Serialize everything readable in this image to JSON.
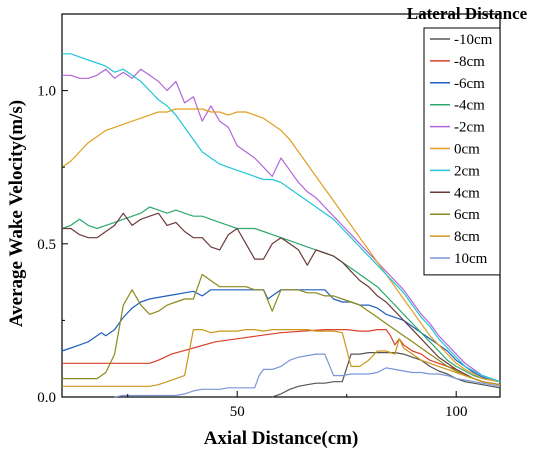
{
  "chart_data": {
    "type": "line",
    "xlabel": "Axial Distance(cm)",
    "ylabel": "Average Wake Velocity(m/s)",
    "xlim": [
      10,
      110
    ],
    "ylim": [
      0,
      1.25
    ],
    "x_ticks": [
      50,
      100
    ],
    "x_tick_labels": [
      "50",
      "100"
    ],
    "y_ticks": [
      0,
      0.5,
      1.0
    ],
    "y_tick_labels": [
      "0.0",
      "0.5",
      "1.0"
    ],
    "legend": {
      "title": "Lateral Distance",
      "placement": "top-right"
    },
    "series": [
      {
        "name": "-10cm",
        "color": "#555555",
        "x": [
          58,
          60,
          62,
          64,
          66,
          68,
          70,
          72,
          74,
          76,
          78,
          80,
          82,
          84,
          86,
          88,
          90,
          92,
          94,
          96,
          98,
          100,
          102,
          104,
          106,
          108,
          110
        ],
        "y": [
          0.0,
          0.01,
          0.025,
          0.035,
          0.04,
          0.045,
          0.045,
          0.05,
          0.05,
          0.14,
          0.14,
          0.145,
          0.145,
          0.145,
          0.145,
          0.14,
          0.13,
          0.12,
          0.1,
          0.085,
          0.075,
          0.06,
          0.05,
          0.045,
          0.04,
          0.035,
          0.03
        ]
      },
      {
        "name": "-8cm",
        "color": "#d9412b",
        "x": [
          10,
          12,
          15,
          20,
          25,
          30,
          32,
          35,
          40,
          45,
          50,
          55,
          60,
          65,
          70,
          75,
          78,
          80,
          82,
          84,
          85,
          86,
          87,
          88,
          90,
          92,
          94,
          96,
          98,
          100,
          102,
          104,
          106,
          108,
          110
        ],
        "y": [
          0.11,
          0.11,
          0.11,
          0.11,
          0.11,
          0.11,
          0.12,
          0.14,
          0.16,
          0.18,
          0.19,
          0.2,
          0.21,
          0.215,
          0.22,
          0.22,
          0.215,
          0.215,
          0.22,
          0.22,
          0.2,
          0.17,
          0.19,
          0.17,
          0.15,
          0.14,
          0.12,
          0.11,
          0.1,
          0.09,
          0.075,
          0.06,
          0.05,
          0.045,
          0.04
        ]
      },
      {
        "name": "-6cm",
        "color": "#1f5fbf",
        "x": [
          10,
          12,
          14,
          16,
          18,
          19,
          20,
          22,
          24,
          26,
          28,
          30,
          32,
          34,
          36,
          38,
          40,
          42,
          44,
          46,
          48,
          50,
          52,
          54,
          56,
          57,
          58,
          60,
          62,
          64,
          66,
          68,
          70,
          72,
          74,
          76,
          78,
          80,
          82,
          84,
          86,
          88,
          90,
          92,
          94,
          96,
          98,
          100,
          102,
          104,
          106,
          108,
          110
        ],
        "y": [
          0.15,
          0.16,
          0.17,
          0.18,
          0.2,
          0.21,
          0.2,
          0.22,
          0.26,
          0.29,
          0.31,
          0.32,
          0.325,
          0.33,
          0.335,
          0.34,
          0.345,
          0.33,
          0.35,
          0.35,
          0.35,
          0.35,
          0.35,
          0.35,
          0.35,
          0.32,
          0.33,
          0.35,
          0.35,
          0.35,
          0.35,
          0.35,
          0.35,
          0.32,
          0.31,
          0.31,
          0.3,
          0.3,
          0.29,
          0.27,
          0.26,
          0.25,
          0.23,
          0.21,
          0.19,
          0.17,
          0.15,
          0.12,
          0.1,
          0.08,
          0.065,
          0.055,
          0.05
        ]
      },
      {
        "name": "-4cm",
        "color": "#2ea86b",
        "x": [
          10,
          12,
          14,
          16,
          18,
          20,
          22,
          24,
          26,
          28,
          30,
          32,
          34,
          36,
          38,
          40,
          42,
          44,
          46,
          48,
          50,
          52,
          54,
          56,
          58,
          60,
          62,
          64,
          66,
          68,
          70,
          72,
          74,
          76,
          78,
          80,
          82,
          84,
          86,
          88,
          90,
          92,
          94,
          96,
          98,
          100,
          102,
          104,
          106,
          108,
          110
        ],
        "y": [
          0.55,
          0.56,
          0.58,
          0.56,
          0.55,
          0.56,
          0.57,
          0.58,
          0.59,
          0.6,
          0.62,
          0.61,
          0.6,
          0.61,
          0.6,
          0.59,
          0.59,
          0.58,
          0.57,
          0.56,
          0.55,
          0.55,
          0.55,
          0.54,
          0.53,
          0.52,
          0.51,
          0.5,
          0.49,
          0.48,
          0.47,
          0.46,
          0.44,
          0.42,
          0.4,
          0.38,
          0.36,
          0.33,
          0.3,
          0.27,
          0.24,
          0.21,
          0.18,
          0.15,
          0.12,
          0.1,
          0.085,
          0.07,
          0.06,
          0.055,
          0.05
        ]
      },
      {
        "name": "-2cm",
        "color": "#b266d9",
        "x": [
          10,
          12,
          14,
          16,
          18,
          20,
          22,
          24,
          26,
          28,
          30,
          32,
          34,
          36,
          38,
          40,
          42,
          44,
          46,
          48,
          50,
          52,
          54,
          56,
          58,
          60,
          62,
          64,
          66,
          68,
          70,
          72,
          74,
          76,
          78,
          80,
          82,
          84,
          86,
          88,
          90,
          92,
          94,
          96,
          98,
          100,
          102,
          104,
          106,
          108,
          110
        ],
        "y": [
          1.05,
          1.05,
          1.04,
          1.04,
          1.05,
          1.07,
          1.04,
          1.06,
          1.04,
          1.07,
          1.05,
          1.03,
          1.0,
          1.03,
          0.96,
          0.98,
          0.9,
          0.95,
          0.9,
          0.88,
          0.82,
          0.8,
          0.78,
          0.75,
          0.72,
          0.78,
          0.74,
          0.7,
          0.67,
          0.65,
          0.62,
          0.59,
          0.56,
          0.53,
          0.5,
          0.47,
          0.44,
          0.41,
          0.38,
          0.35,
          0.31,
          0.27,
          0.24,
          0.2,
          0.17,
          0.14,
          0.11,
          0.09,
          0.07,
          0.06,
          0.05
        ]
      },
      {
        "name": "0cm",
        "color": "#e0a020",
        "x": [
          10,
          12,
          14,
          16,
          18,
          20,
          22,
          24,
          26,
          28,
          30,
          32,
          34,
          36,
          38,
          40,
          42,
          44,
          46,
          48,
          50,
          52,
          54,
          56,
          58,
          60,
          62,
          64,
          66,
          68,
          70,
          72,
          74,
          76,
          78,
          80,
          82,
          84,
          86,
          88,
          90,
          92,
          94,
          96,
          98,
          100,
          102,
          104,
          106,
          108,
          110
        ],
        "y": [
          0.75,
          0.77,
          0.8,
          0.83,
          0.85,
          0.87,
          0.88,
          0.89,
          0.9,
          0.91,
          0.92,
          0.93,
          0.93,
          0.94,
          0.94,
          0.94,
          0.94,
          0.93,
          0.93,
          0.92,
          0.93,
          0.93,
          0.92,
          0.91,
          0.89,
          0.87,
          0.84,
          0.8,
          0.76,
          0.72,
          0.68,
          0.64,
          0.6,
          0.56,
          0.52,
          0.48,
          0.44,
          0.4,
          0.36,
          0.32,
          0.28,
          0.24,
          0.2,
          0.17,
          0.14,
          0.11,
          0.09,
          0.075,
          0.06,
          0.055,
          0.05
        ]
      },
      {
        "name": "2cm",
        "color": "#22c6d8",
        "x": [
          10,
          12,
          14,
          16,
          18,
          20,
          22,
          24,
          26,
          28,
          30,
          32,
          34,
          36,
          38,
          40,
          42,
          44,
          46,
          48,
          50,
          52,
          54,
          56,
          58,
          60,
          62,
          64,
          66,
          68,
          70,
          72,
          74,
          76,
          78,
          80,
          82,
          84,
          86,
          88,
          90,
          92,
          94,
          96,
          98,
          100,
          102,
          104,
          106,
          108,
          110
        ],
        "y": [
          1.12,
          1.12,
          1.11,
          1.1,
          1.09,
          1.08,
          1.06,
          1.07,
          1.05,
          1.03,
          1.0,
          0.97,
          0.95,
          0.92,
          0.88,
          0.84,
          0.8,
          0.78,
          0.76,
          0.75,
          0.74,
          0.73,
          0.72,
          0.71,
          0.71,
          0.7,
          0.68,
          0.66,
          0.64,
          0.62,
          0.6,
          0.58,
          0.55,
          0.52,
          0.49,
          0.46,
          0.43,
          0.4,
          0.37,
          0.34,
          0.3,
          0.26,
          0.23,
          0.19,
          0.16,
          0.13,
          0.1,
          0.085,
          0.07,
          0.06,
          0.05
        ]
      },
      {
        "name": "4cm",
        "color": "#6b3a3a",
        "x": [
          10,
          12,
          14,
          16,
          18,
          20,
          22,
          24,
          26,
          28,
          30,
          32,
          34,
          36,
          38,
          40,
          42,
          44,
          46,
          48,
          50,
          52,
          54,
          56,
          58,
          60,
          62,
          64,
          66,
          68,
          70,
          72,
          74,
          76,
          78,
          80,
          82,
          84,
          86,
          88,
          90,
          92,
          94,
          96,
          98,
          100,
          102,
          104,
          106,
          108,
          110
        ],
        "y": [
          0.55,
          0.55,
          0.53,
          0.52,
          0.52,
          0.54,
          0.56,
          0.6,
          0.56,
          0.58,
          0.59,
          0.6,
          0.56,
          0.57,
          0.54,
          0.52,
          0.52,
          0.49,
          0.48,
          0.53,
          0.55,
          0.5,
          0.45,
          0.45,
          0.5,
          0.52,
          0.5,
          0.48,
          0.43,
          0.48,
          0.47,
          0.46,
          0.44,
          0.41,
          0.38,
          0.36,
          0.33,
          0.31,
          0.28,
          0.25,
          0.22,
          0.19,
          0.16,
          0.13,
          0.11,
          0.09,
          0.075,
          0.06,
          0.05,
          0.045,
          0.04
        ]
      },
      {
        "name": "6cm",
        "color": "#8a8a1a",
        "x": [
          10,
          12,
          14,
          16,
          18,
          20,
          22,
          24,
          26,
          28,
          30,
          32,
          34,
          36,
          38,
          40,
          42,
          44,
          46,
          48,
          50,
          52,
          54,
          56,
          58,
          60,
          62,
          64,
          66,
          68,
          70,
          72,
          74,
          76,
          78,
          80,
          82,
          84,
          86,
          88,
          90,
          92,
          94,
          96,
          98,
          100,
          102,
          104,
          106,
          108,
          110
        ],
        "y": [
          0.06,
          0.06,
          0.06,
          0.06,
          0.06,
          0.08,
          0.14,
          0.3,
          0.35,
          0.3,
          0.27,
          0.28,
          0.3,
          0.31,
          0.32,
          0.32,
          0.4,
          0.38,
          0.36,
          0.36,
          0.36,
          0.36,
          0.35,
          0.35,
          0.28,
          0.35,
          0.35,
          0.35,
          0.34,
          0.34,
          0.33,
          0.33,
          0.32,
          0.31,
          0.3,
          0.28,
          0.26,
          0.24,
          0.22,
          0.2,
          0.18,
          0.16,
          0.14,
          0.12,
          0.1,
          0.085,
          0.07,
          0.06,
          0.05,
          0.045,
          0.04
        ]
      },
      {
        "name": "8cm",
        "color": "#c9961a",
        "x": [
          10,
          14,
          18,
          22,
          26,
          30,
          32,
          34,
          36,
          38,
          40,
          42,
          44,
          46,
          48,
          50,
          52,
          54,
          56,
          58,
          60,
          62,
          64,
          66,
          68,
          70,
          72,
          74,
          76,
          78,
          80,
          82,
          84,
          86,
          87,
          88,
          90,
          92,
          94,
          96,
          98,
          100,
          102,
          104,
          106,
          108,
          110
        ],
        "y": [
          0.035,
          0.035,
          0.035,
          0.035,
          0.035,
          0.035,
          0.04,
          0.05,
          0.06,
          0.07,
          0.22,
          0.22,
          0.21,
          0.215,
          0.215,
          0.215,
          0.22,
          0.22,
          0.215,
          0.22,
          0.22,
          0.22,
          0.22,
          0.22,
          0.215,
          0.215,
          0.215,
          0.21,
          0.1,
          0.1,
          0.12,
          0.15,
          0.15,
          0.14,
          0.19,
          0.16,
          0.14,
          0.12,
          0.11,
          0.1,
          0.09,
          0.08,
          0.07,
          0.06,
          0.05,
          0.045,
          0.04
        ]
      },
      {
        "name": "10cm",
        "color": "#7b96d6",
        "x": [
          22,
          24,
          26,
          28,
          30,
          32,
          34,
          36,
          38,
          40,
          42,
          44,
          46,
          48,
          50,
          52,
          54,
          55,
          56,
          58,
          60,
          62,
          64,
          66,
          68,
          70,
          72,
          74,
          76,
          78,
          80,
          82,
          84,
          86,
          88,
          90,
          92,
          94,
          96,
          98,
          100,
          102,
          104,
          106,
          108,
          110
        ],
        "y": [
          0.0,
          0.005,
          0.005,
          0.005,
          0.005,
          0.005,
          0.005,
          0.005,
          0.01,
          0.02,
          0.025,
          0.025,
          0.025,
          0.03,
          0.03,
          0.03,
          0.03,
          0.07,
          0.09,
          0.09,
          0.1,
          0.12,
          0.13,
          0.135,
          0.14,
          0.14,
          0.07,
          0.07,
          0.075,
          0.075,
          0.075,
          0.08,
          0.095,
          0.09,
          0.085,
          0.08,
          0.08,
          0.075,
          0.075,
          0.07,
          0.06,
          0.055,
          0.05,
          0.045,
          0.04,
          0.035
        ]
      }
    ]
  }
}
